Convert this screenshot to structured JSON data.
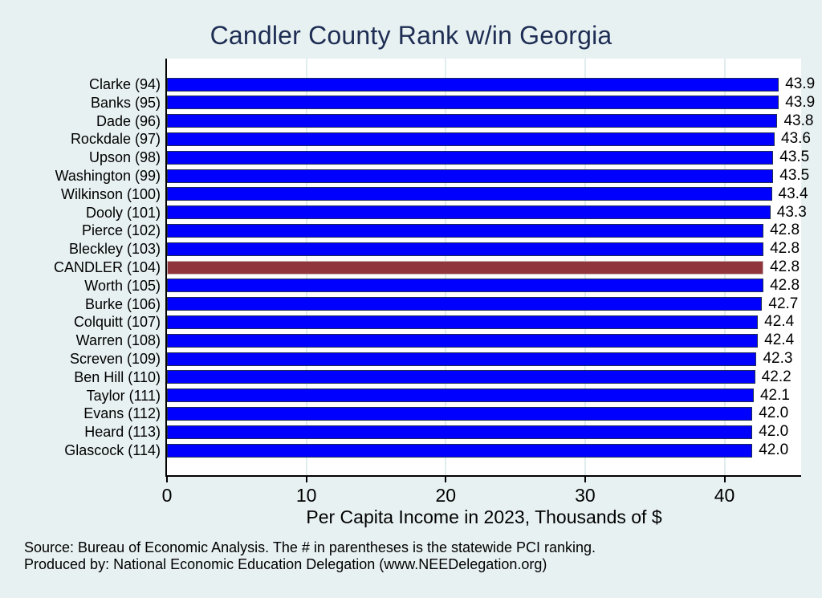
{
  "figure": {
    "background": "#e8f1f2",
    "plot_background": "#ffffff"
  },
  "chart_data": {
    "type": "bar",
    "orientation": "horizontal",
    "title": "Candler County Rank w/in Georgia",
    "xlabel": "Per Capita Income in 2023, Thousands of $",
    "ylabel": "",
    "x_ticks": [
      0,
      10,
      20,
      30,
      40
    ],
    "xlim": [
      0,
      45.5
    ],
    "grid": "vertical-light-gridlines-at-ticks",
    "legend": "none",
    "categories": [
      "Clarke (94)",
      "Banks (95)",
      "Dade (96)",
      "Rockdale (97)",
      "Upson (98)",
      "Washington (99)",
      "Wilkinson (100)",
      "Dooly (101)",
      "Pierce (102)",
      "Bleckley (103)",
      "CANDLER (104)",
      "Worth (105)",
      "Burke (106)",
      "Colquitt (107)",
      "Warren (108)",
      "Screven (109)",
      "Ben Hill (110)",
      "Taylor (111)",
      "Evans (112)",
      "Heard (113)",
      "Glascock (114)"
    ],
    "values": [
      43.9,
      43.9,
      43.8,
      43.6,
      43.5,
      43.5,
      43.4,
      43.3,
      42.8,
      42.8,
      42.8,
      42.8,
      42.7,
      42.4,
      42.4,
      42.3,
      42.2,
      42.1,
      42.0,
      42.0,
      42.0
    ],
    "value_labels": [
      "43.9",
      "43.9",
      "43.8",
      "43.6",
      "43.5",
      "43.5",
      "43.4",
      "43.3",
      "42.8",
      "42.8",
      "42.8",
      "42.8",
      "42.7",
      "42.4",
      "42.4",
      "42.3",
      "42.2",
      "42.1",
      "42.0",
      "42.0",
      "42.0"
    ],
    "highlight_index": 10,
    "highlight_category": "CANDLER (104)",
    "notes": [
      "Source: Bureau of Economic Analysis. The # in parentheses is the statewide PCI ranking.",
      "Produced by: National Economic Education Delegation (www.NEEDelegation.org)"
    ],
    "colors": {
      "bar": "#0000ff",
      "bar_border": "#1e2d53",
      "highlight_bar": "#90353b",
      "highlight_border": "#c9b2b4",
      "title": "#1e2d53",
      "gridline": "#e1ecee",
      "figure_background": "#e8f1f2",
      "plot_background": "#ffffff",
      "axis": "#000000",
      "text": "#000000"
    }
  }
}
